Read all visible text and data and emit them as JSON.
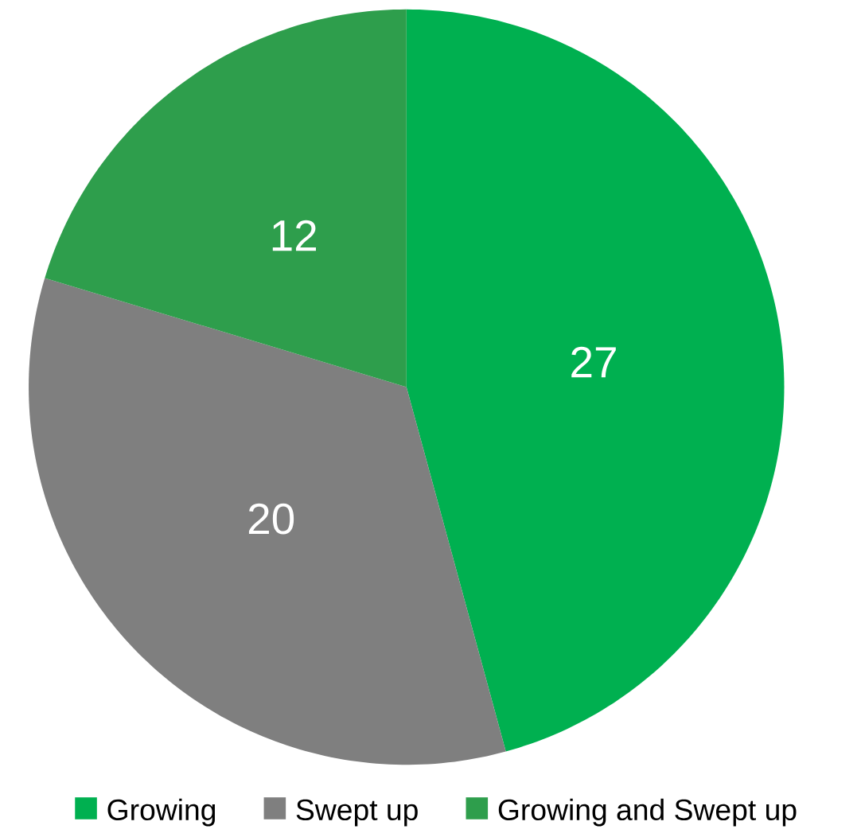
{
  "chart_data": {
    "type": "pie",
    "categories": [
      "Growing",
      "Swept up",
      "Growing and Swept up"
    ],
    "values": [
      27,
      20,
      12
    ],
    "colors": [
      "#00b050",
      "#7f7f7f",
      "#2e9e4c"
    ],
    "data_labels": true,
    "legend": "bottom"
  }
}
